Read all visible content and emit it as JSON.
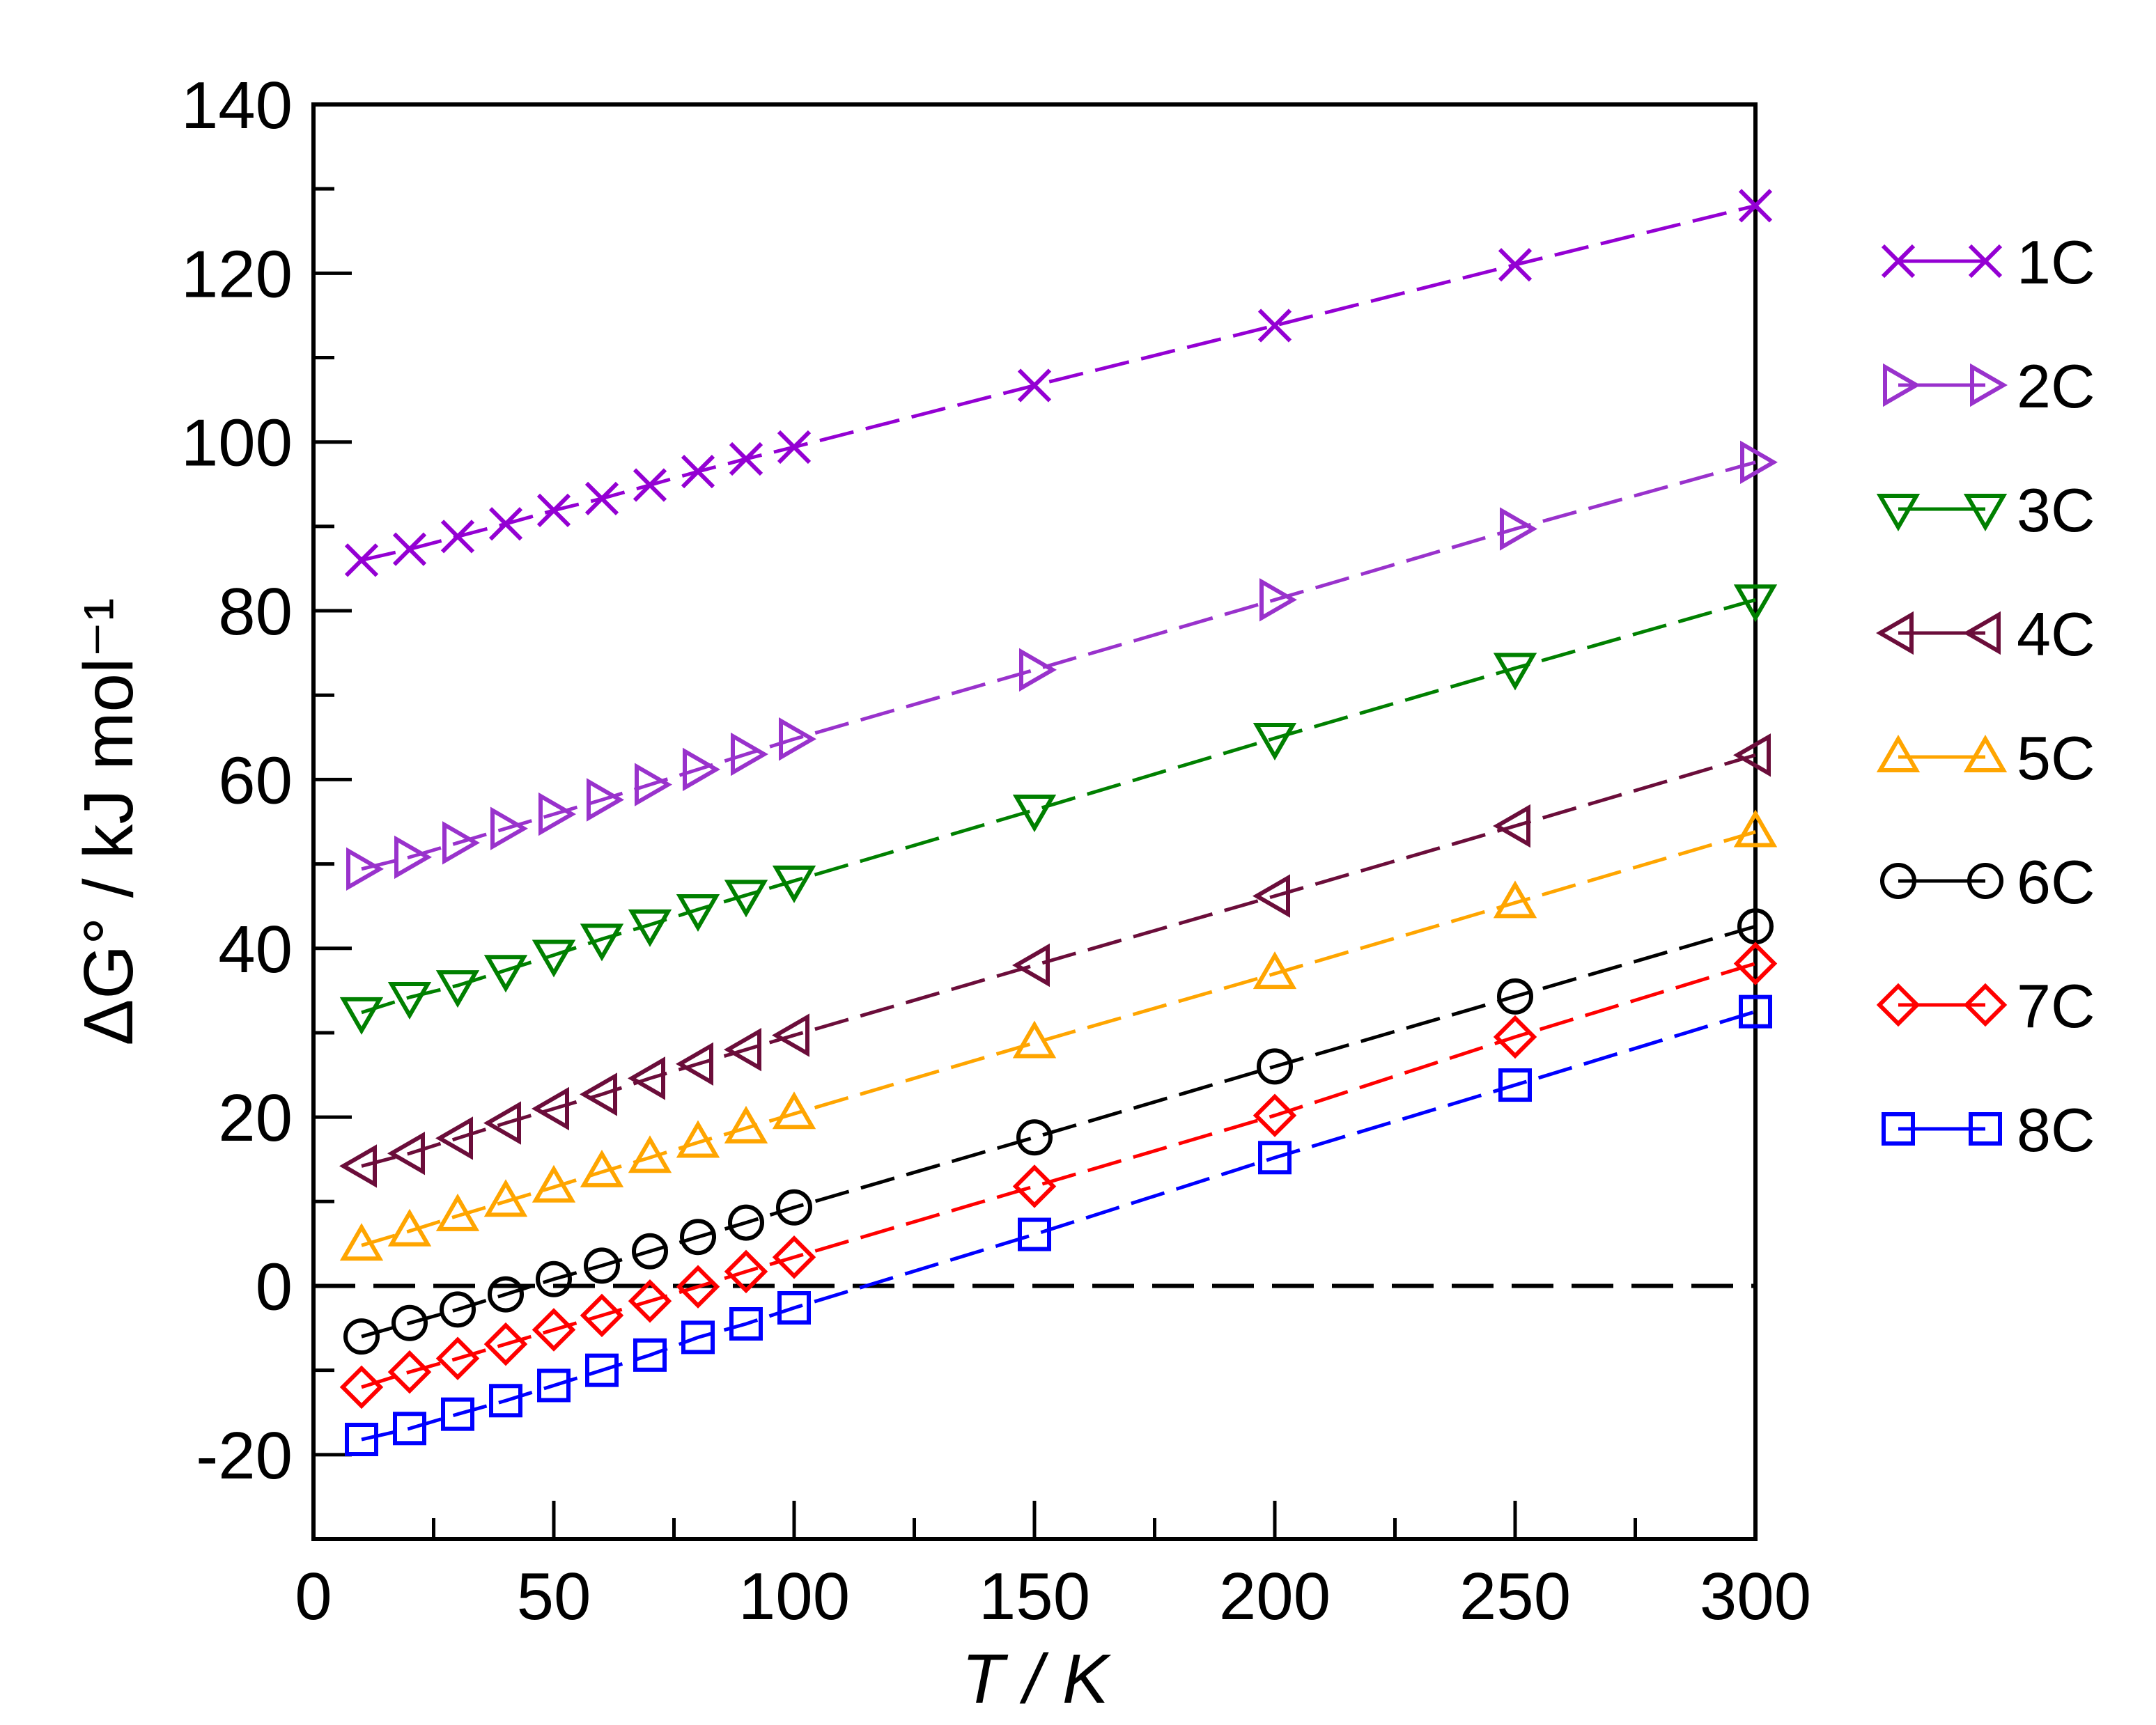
{
  "chart_data": {
    "type": "line",
    "title": "",
    "xlabel": "T / K",
    "ylabel": "ΔG° / kJ mol⁻¹",
    "xlim": [
      0,
      300
    ],
    "ylim": [
      -30,
      140
    ],
    "x_major_ticks": [
      0,
      50,
      100,
      150,
      200,
      250,
      300
    ],
    "y_major_ticks": [
      -20,
      0,
      20,
      40,
      60,
      80,
      100,
      120,
      140
    ],
    "x_minor_step": 25,
    "y_minor_step": 10,
    "reference_line": {
      "y": 0,
      "style": "dashed",
      "from_x": 0,
      "to_x": 300
    },
    "x": [
      10,
      20,
      30,
      40,
      50,
      60,
      70,
      80,
      90,
      100,
      150,
      200,
      250,
      300
    ],
    "series": [
      {
        "name": "1C",
        "color": "#9400d3",
        "marker": "x",
        "values": [
          86.0,
          87.3,
          88.8,
          90.3,
          91.9,
          93.3,
          94.9,
          96.5,
          98.0,
          99.4,
          106.7,
          113.8,
          121.0,
          128.0
        ]
      },
      {
        "name": "2C",
        "color": "#9932cc",
        "marker": "triangle-right",
        "values": [
          49.4,
          50.8,
          52.5,
          54.2,
          55.9,
          57.6,
          59.4,
          61.2,
          63.0,
          64.8,
          73.0,
          81.3,
          89.7,
          97.6
        ]
      },
      {
        "name": "3C",
        "color": "#008000",
        "marker": "triangle-down",
        "values": [
          32.4,
          34.2,
          35.6,
          37.4,
          39.2,
          41.1,
          42.8,
          44.6,
          46.3,
          48.0,
          56.4,
          64.9,
          73.2,
          81.3
        ]
      },
      {
        "name": "4C",
        "color": "#6b0d3a",
        "marker": "triangle-left",
        "values": [
          14.2,
          15.7,
          17.5,
          19.3,
          21.0,
          22.7,
          24.6,
          26.3,
          28.0,
          29.7,
          38.0,
          46.2,
          54.5,
          62.9
        ]
      },
      {
        "name": "5C",
        "color": "#ffa500",
        "marker": "triangle-up",
        "values": [
          4.8,
          6.5,
          8.3,
          10.0,
          11.7,
          13.5,
          15.2,
          17.0,
          18.7,
          20.4,
          28.8,
          37.0,
          45.4,
          53.8
        ]
      },
      {
        "name": "6C",
        "color": "#000000",
        "marker": "circle",
        "values": [
          -6.0,
          -4.4,
          -2.8,
          -1.0,
          0.8,
          2.4,
          4.1,
          5.8,
          7.5,
          9.3,
          17.6,
          26.0,
          34.3,
          42.6
        ]
      },
      {
        "name": "7C",
        "color": "#ff0000",
        "marker": "diamond",
        "values": [
          -12.0,
          -10.2,
          -8.6,
          -6.9,
          -5.2,
          -3.5,
          -1.8,
          -0.1,
          1.7,
          3.4,
          11.8,
          20.2,
          29.5,
          38.2
        ]
      },
      {
        "name": "8C",
        "color": "#0000ff",
        "marker": "square",
        "values": [
          -18.2,
          -16.9,
          -15.2,
          -13.6,
          -11.8,
          -10.0,
          -8.2,
          -6.1,
          -4.5,
          -2.6,
          6.1,
          15.2,
          23.8,
          32.5
        ]
      }
    ],
    "legend": "right"
  }
}
